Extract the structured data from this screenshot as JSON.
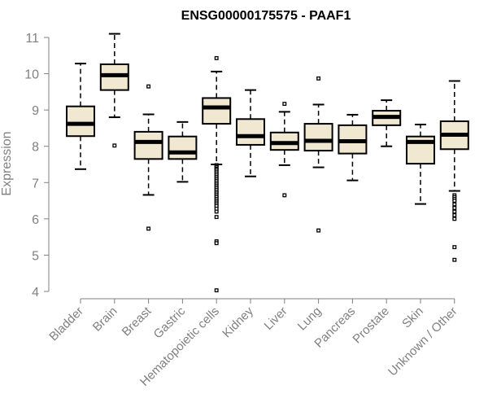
{
  "chart_data": {
    "type": "boxplot",
    "title": "ENSG00000175575 - PAAF1",
    "xlabel": "",
    "ylabel": "Expression",
    "ylim": [
      4,
      11
    ],
    "yticks": [
      4,
      5,
      6,
      7,
      8,
      9,
      10,
      11
    ],
    "grid": false,
    "box_fill": "#f0e8d0",
    "outline_color": "#000000",
    "axis_color": "#808080",
    "categories": [
      "Bladder",
      "Brain",
      "Breast",
      "Gastric",
      "Hematopoietic cells",
      "Kidney",
      "Liver",
      "Lung",
      "Pancreas",
      "Prostate",
      "Skin",
      "Unknown / Other"
    ],
    "boxes": [
      {
        "category": "Bladder",
        "whisker_low": 7.37,
        "q1": 8.28,
        "median": 8.62,
        "q3": 9.1,
        "whisker_high": 10.28,
        "outliers": []
      },
      {
        "category": "Brain",
        "whisker_low": 8.8,
        "q1": 9.55,
        "median": 9.96,
        "q3": 10.26,
        "whisker_high": 11.1,
        "outliers": [
          8.02
        ]
      },
      {
        "category": "Breast",
        "whisker_low": 6.66,
        "q1": 7.65,
        "median": 8.12,
        "q3": 8.4,
        "whisker_high": 8.88,
        "outliers": [
          5.73,
          9.65
        ]
      },
      {
        "category": "Gastric",
        "whisker_low": 7.02,
        "q1": 7.65,
        "median": 7.83,
        "q3": 8.27,
        "whisker_high": 8.67,
        "outliers": []
      },
      {
        "category": "Hematopoietic cells",
        "whisker_low": 7.5,
        "q1": 8.62,
        "median": 9.07,
        "q3": 9.33,
        "whisker_high": 10.06,
        "outliers": [
          10.43,
          7.48,
          7.45,
          7.42,
          7.38,
          7.35,
          7.3,
          7.25,
          7.2,
          7.15,
          7.1,
          7.05,
          7.0,
          6.95,
          6.9,
          6.85,
          6.8,
          6.75,
          6.7,
          6.65,
          6.6,
          6.55,
          6.5,
          6.45,
          6.4,
          6.35,
          6.28,
          6.2,
          6.05,
          5.38,
          5.33,
          4.03
        ]
      },
      {
        "category": "Kidney",
        "whisker_low": 7.17,
        "q1": 8.04,
        "median": 8.28,
        "q3": 8.75,
        "whisker_high": 9.55,
        "outliers": []
      },
      {
        "category": "Liver",
        "whisker_low": 7.48,
        "q1": 7.9,
        "median": 8.09,
        "q3": 8.38,
        "whisker_high": 8.95,
        "outliers": [
          6.65,
          9.17
        ]
      },
      {
        "category": "Lung",
        "whisker_low": 7.42,
        "q1": 7.88,
        "median": 8.15,
        "q3": 8.62,
        "whisker_high": 9.15,
        "outliers": [
          5.68,
          9.87
        ]
      },
      {
        "category": "Pancreas",
        "whisker_low": 7.06,
        "q1": 7.8,
        "median": 8.14,
        "q3": 8.58,
        "whisker_high": 8.87,
        "outliers": []
      },
      {
        "category": "Prostate",
        "whisker_low": 8.0,
        "q1": 8.58,
        "median": 8.81,
        "q3": 8.98,
        "whisker_high": 9.27,
        "outliers": []
      },
      {
        "category": "Skin",
        "whisker_low": 6.41,
        "q1": 7.52,
        "median": 8.12,
        "q3": 8.27,
        "whisker_high": 8.6,
        "outliers": []
      },
      {
        "category": "Unknown / Other",
        "whisker_low": 6.77,
        "q1": 7.92,
        "median": 8.32,
        "q3": 8.69,
        "whisker_high": 9.8,
        "outliers": [
          6.65,
          6.6,
          6.55,
          6.5,
          6.4,
          6.3,
          6.2,
          6.1,
          6.0,
          5.22,
          4.87
        ]
      }
    ]
  }
}
